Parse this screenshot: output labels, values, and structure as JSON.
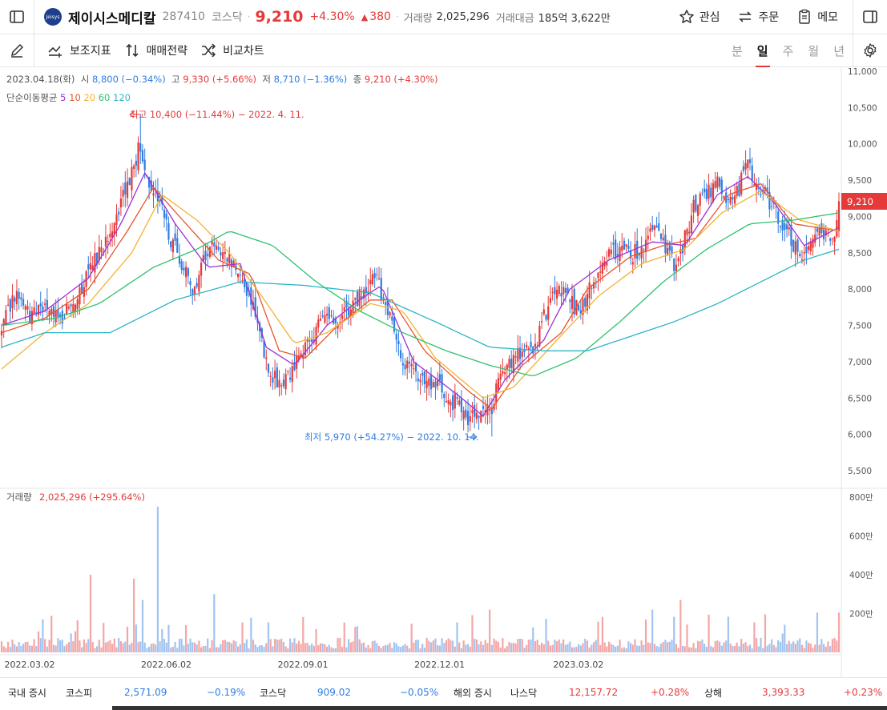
{
  "header": {
    "logo_text": "Jeisys",
    "name": "제이시스메디칼",
    "code": "287410",
    "market": "코스닥",
    "price": "9,210",
    "change_pct": "+4.30%",
    "change_abs": "380",
    "volume_label": "거래량",
    "volume": "2,025,296",
    "amount_label": "거래대금",
    "amount": "185억 3,622만",
    "btn_watch": "관심",
    "btn_order": "주문",
    "btn_memo": "메모"
  },
  "toolbar": {
    "indicators": "보조지표",
    "strategy": "매매전략",
    "compare": "비교차트",
    "periods": [
      "분",
      "일",
      "주",
      "월",
      "년"
    ],
    "selected_period": "일"
  },
  "info": {
    "date": "2023.04.18(화)",
    "open_label": "시",
    "open": "8,800 (−0.34%)",
    "high_label": "고",
    "high": "9,330 (+5.66%)",
    "low_label": "저",
    "low": "8,710 (−1.36%)",
    "close_label": "종",
    "close": "9,210 (+4.30%)",
    "ma_label": "단순이동평균",
    "ma_periods": [
      "5",
      "10",
      "20",
      "60",
      "120"
    ]
  },
  "chart_data": {
    "type": "candlestick",
    "y_ticks": [
      "11,000",
      "10,500",
      "10,000",
      "9,500",
      "9,000",
      "8,500",
      "8,000",
      "7,500",
      "7,000",
      "6,500",
      "6,000",
      "5,500"
    ],
    "ylim": [
      5300,
      11000
    ],
    "x_ticks": [
      "2022.03.02",
      "2022.06.02",
      "2022.09.01",
      "2022.12.01",
      "2023.03.02"
    ],
    "last_price_label": "9,210",
    "max_annotation": "최고 10,400 (−11.44%) − 2022. 4. 11.",
    "min_annotation": "최저 5,970 (+54.27%) − 2022. 10. 14.",
    "close_path": [
      [
        0,
        7400
      ],
      [
        6,
        7950
      ],
      [
        13,
        7600
      ],
      [
        20,
        7800
      ],
      [
        27,
        7600
      ],
      [
        34,
        7900
      ],
      [
        41,
        8250
      ],
      [
        48,
        8700
      ],
      [
        55,
        9200
      ],
      [
        60,
        9600
      ],
      [
        64,
        10000
      ],
      [
        68,
        9500
      ],
      [
        73,
        9250
      ],
      [
        78,
        8700
      ],
      [
        83,
        8300
      ],
      [
        88,
        8000
      ],
      [
        93,
        8400
      ],
      [
        98,
        8650
      ],
      [
        103,
        8500
      ],
      [
        108,
        8300
      ],
      [
        113,
        8000
      ],
      [
        118,
        7500
      ],
      [
        122,
        7000
      ],
      [
        127,
        6700
      ],
      [
        132,
        6800
      ],
      [
        137,
        7000
      ],
      [
        142,
        7300
      ],
      [
        147,
        7500
      ],
      [
        152,
        7600
      ],
      [
        157,
        7650
      ],
      [
        162,
        7800
      ],
      [
        167,
        8000
      ],
      [
        171,
        8200
      ],
      [
        176,
        7900
      ],
      [
        181,
        7400
      ],
      [
        186,
        7000
      ],
      [
        191,
        6800
      ],
      [
        196,
        6700
      ],
      [
        201,
        6650
      ],
      [
        206,
        6500
      ],
      [
        211,
        6400
      ],
      [
        216,
        6200
      ],
      [
        221,
        6250
      ],
      [
        226,
        6400
      ],
      [
        231,
        6900
      ],
      [
        236,
        7050
      ],
      [
        241,
        7100
      ],
      [
        246,
        7200
      ],
      [
        251,
        7700
      ],
      [
        256,
        8100
      ],
      [
        261,
        7900
      ],
      [
        266,
        7700
      ],
      [
        271,
        8000
      ],
      [
        276,
        8300
      ],
      [
        281,
        8500
      ],
      [
        286,
        8600
      ],
      [
        291,
        8500
      ],
      [
        296,
        8600
      ],
      [
        301,
        8800
      ],
      [
        306,
        8600
      ],
      [
        311,
        8300
      ],
      [
        316,
        8800
      ],
      [
        320,
        9200
      ],
      [
        325,
        9300
      ],
      [
        330,
        9500
      ],
      [
        335,
        9200
      ],
      [
        340,
        9400
      ],
      [
        344,
        9700
      ],
      [
        348,
        9500
      ],
      [
        352,
        9300
      ],
      [
        356,
        9100
      ],
      [
        360,
        8800
      ],
      [
        364,
        8700
      ],
      [
        368,
        8400
      ],
      [
        372,
        8700
      ],
      [
        376,
        8800
      ],
      [
        380,
        8700
      ],
      [
        384,
        8800
      ],
      [
        386,
        9210
      ]
    ],
    "ma_series": [
      {
        "name": "5",
        "color": "#9b30d9",
        "values": [
          [
            0,
            7500
          ],
          [
            20,
            7700
          ],
          [
            40,
            8150
          ],
          [
            55,
            8900
          ],
          [
            66,
            9600
          ],
          [
            80,
            8900
          ],
          [
            95,
            8300
          ],
          [
            110,
            8350
          ],
          [
            122,
            7200
          ],
          [
            135,
            6950
          ],
          [
            150,
            7500
          ],
          [
            165,
            7850
          ],
          [
            175,
            8050
          ],
          [
            190,
            7000
          ],
          [
            210,
            6550
          ],
          [
            222,
            6250
          ],
          [
            232,
            6750
          ],
          [
            250,
            7300
          ],
          [
            262,
            8000
          ],
          [
            280,
            8400
          ],
          [
            300,
            8650
          ],
          [
            315,
            8600
          ],
          [
            330,
            9300
          ],
          [
            344,
            9550
          ],
          [
            356,
            9200
          ],
          [
            370,
            8600
          ],
          [
            386,
            8850
          ]
        ]
      },
      {
        "name": "10",
        "color": "#e8552b",
        "values": [
          [
            0,
            7400
          ],
          [
            20,
            7600
          ],
          [
            40,
            8000
          ],
          [
            58,
            8800
          ],
          [
            70,
            9400
          ],
          [
            85,
            8900
          ],
          [
            100,
            8400
          ],
          [
            115,
            8200
          ],
          [
            128,
            7150
          ],
          [
            140,
            7050
          ],
          [
            155,
            7500
          ],
          [
            170,
            7850
          ],
          [
            180,
            7850
          ],
          [
            195,
            7150
          ],
          [
            215,
            6600
          ],
          [
            226,
            6350
          ],
          [
            240,
            6950
          ],
          [
            258,
            7400
          ],
          [
            270,
            8000
          ],
          [
            290,
            8450
          ],
          [
            305,
            8600
          ],
          [
            320,
            8700
          ],
          [
            335,
            9300
          ],
          [
            350,
            9450
          ],
          [
            365,
            8900
          ],
          [
            386,
            8800
          ]
        ]
      },
      {
        "name": "20",
        "color": "#f2b233",
        "values": [
          [
            0,
            6900
          ],
          [
            20,
            7400
          ],
          [
            40,
            7800
          ],
          [
            60,
            8500
          ],
          [
            74,
            9300
          ],
          [
            90,
            8950
          ],
          [
            105,
            8500
          ],
          [
            120,
            7900
          ],
          [
            135,
            7250
          ],
          [
            150,
            7400
          ],
          [
            170,
            7800
          ],
          [
            185,
            7700
          ],
          [
            200,
            7050
          ],
          [
            222,
            6500
          ],
          [
            236,
            6650
          ],
          [
            256,
            7300
          ],
          [
            275,
            7900
          ],
          [
            295,
            8350
          ],
          [
            315,
            8550
          ],
          [
            332,
            9050
          ],
          [
            350,
            9350
          ],
          [
            368,
            8950
          ],
          [
            386,
            8800
          ]
        ]
      },
      {
        "name": "60",
        "color": "#2ec26b",
        "values": [
          [
            0,
            7500
          ],
          [
            25,
            7600
          ],
          [
            45,
            7800
          ],
          [
            70,
            8300
          ],
          [
            90,
            8550
          ],
          [
            105,
            8800
          ],
          [
            125,
            8600
          ],
          [
            145,
            8100
          ],
          [
            165,
            7700
          ],
          [
            185,
            7400
          ],
          [
            205,
            7150
          ],
          [
            225,
            6950
          ],
          [
            245,
            6800
          ],
          [
            265,
            7050
          ],
          [
            285,
            7550
          ],
          [
            305,
            8100
          ],
          [
            325,
            8550
          ],
          [
            345,
            8900
          ],
          [
            365,
            8950
          ],
          [
            386,
            9050
          ]
        ]
      },
      {
        "name": "120",
        "color": "#2bb5c8",
        "values": [
          [
            0,
            7200
          ],
          [
            20,
            7400
          ],
          [
            50,
            7400
          ],
          [
            80,
            7850
          ],
          [
            110,
            8100
          ],
          [
            140,
            8050
          ],
          [
            170,
            7950
          ],
          [
            200,
            7550
          ],
          [
            225,
            7200
          ],
          [
            250,
            7150
          ],
          [
            270,
            7150
          ],
          [
            290,
            7350
          ],
          [
            310,
            7550
          ],
          [
            330,
            7800
          ],
          [
            350,
            8100
          ],
          [
            370,
            8400
          ],
          [
            386,
            8550
          ]
        ]
      }
    ],
    "volume": {
      "label": "거래량",
      "value": "2,025,296 (+295.64%)",
      "y_ticks": [
        "800만",
        "600만",
        "400만",
        "200만"
      ],
      "ylim": [
        0,
        800
      ],
      "unit": "만"
    }
  },
  "footer": {
    "domestic_label": "국내 증시",
    "kospi_label": "코스피",
    "kospi": "2,571.09",
    "kospi_chg": "−0.19%",
    "kosdaq_label": "코스닥",
    "kosdaq": "909.02",
    "kosdaq_chg": "−0.05%",
    "overseas_label": "해외 증시",
    "nasdaq_label": "나스닥",
    "nasdaq": "12,157.72",
    "nasdaq_chg": "+0.28%",
    "shanghai_label": "상해",
    "shanghai": "3,393.33",
    "shanghai_chg": "+0.23%"
  },
  "colors": {
    "up": "#e63939",
    "down": "#2f7de1",
    "grid": "#eeeeee"
  }
}
